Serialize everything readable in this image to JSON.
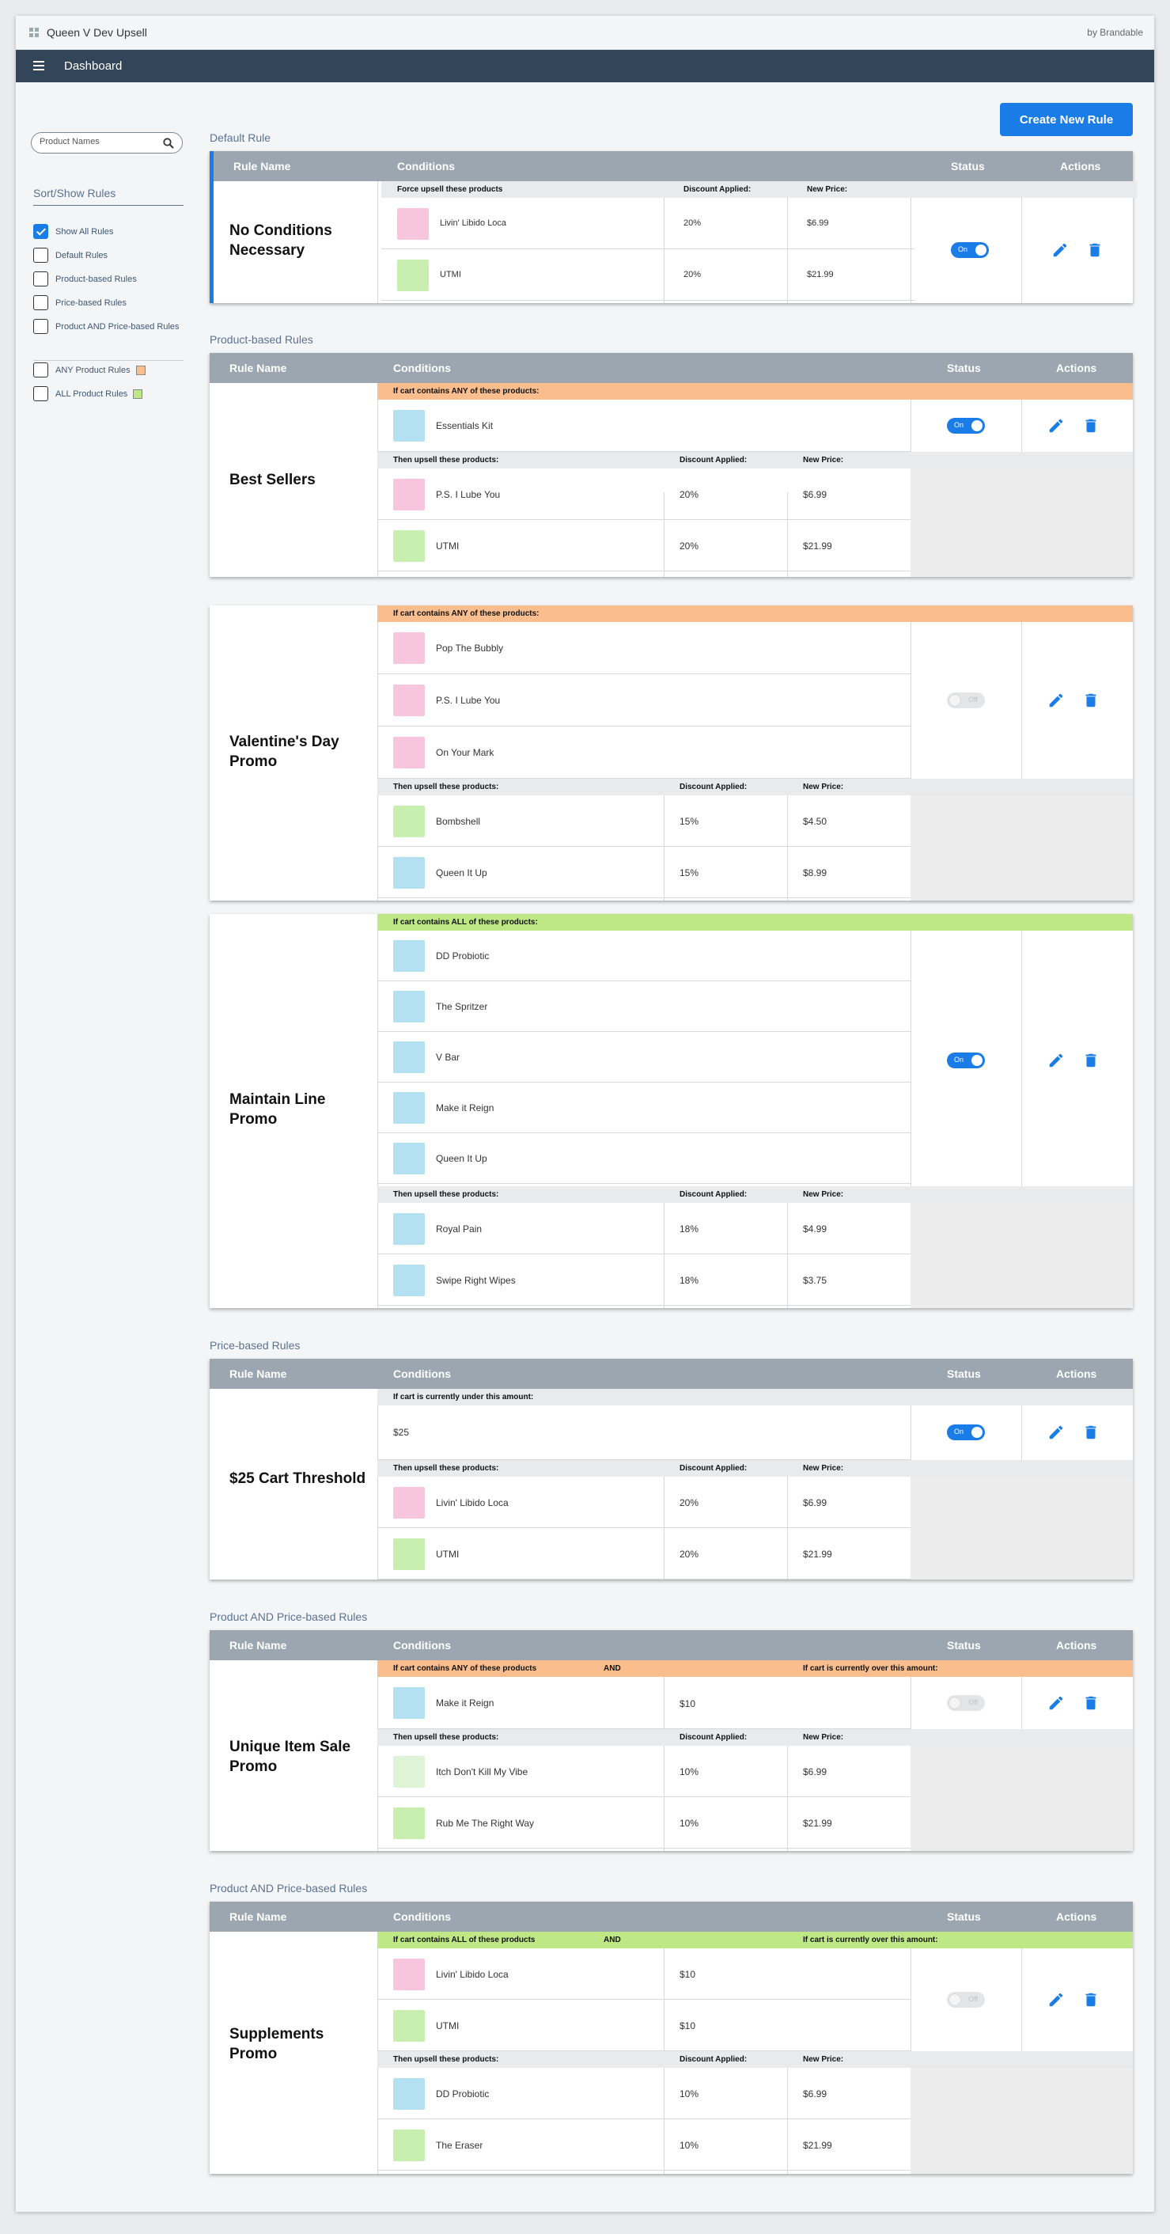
{
  "app": {
    "title": "Queen V Dev Upsell",
    "by": "by Brandable",
    "nav_title": "Dashboard"
  },
  "search": {
    "placeholder": "Product Names"
  },
  "sidebar": {
    "title": "Sort/Show Rules",
    "filters": [
      "Show All Rules",
      "Default Rules",
      "Product-based Rules",
      "Price-based Rules",
      "Product AND Price-based Rules"
    ],
    "swatches": [
      "ANY Product Rules",
      "ALL Product Rules"
    ]
  },
  "create_button": "Create New Rule",
  "colors": {
    "accent": "#1a7ce6",
    "any": "#f9bd8e",
    "all": "#bee886",
    "header": "#9ba6b1",
    "nav": "#334559"
  },
  "headers": {
    "rule_name": "Rule Name",
    "conditions": "Conditions",
    "status": "Status",
    "actions": "Actions"
  },
  "labels": {
    "discount": "Discount Applied:",
    "new_price": "New Price:",
    "then_upsell": "Then upsell these products:",
    "force_upsell": "Force upsell these products",
    "if_any": "If cart contains ANY of these products:",
    "if_all": "If cart contains ALL of these products:",
    "if_under": "If cart is currently under this amount:",
    "if_any_short": "If cart contains ANY of these products",
    "if_all_short": "If cart contains ALL of these products",
    "and": "AND",
    "if_over": "If cart is currently over this amount:",
    "on": "On",
    "off": "Off"
  },
  "sections": [
    "Default Rule",
    "Product-based Rules",
    "Price-based Rules",
    "Product AND Price-based Rules",
    "Product AND Price-based Rules"
  ],
  "rules": [
    {
      "name": "No Conditions Necessary",
      "status": "on",
      "upsell": [
        {
          "product": "Livin' Libido Loca",
          "discount": "20%",
          "price": "$6.99"
        },
        {
          "product": "UTMI",
          "discount": "20%",
          "price": "$21.99"
        }
      ]
    },
    {
      "name": "Best Sellers",
      "status": "on",
      "conditions": [
        "Essentials Kit"
      ],
      "upsell": [
        {
          "product": "P.S. I Lube You",
          "discount": "20%",
          "price": "$6.99"
        },
        {
          "product": "UTMI",
          "discount": "20%",
          "price": "$21.99"
        }
      ]
    },
    {
      "name": "Valentine's Day Promo",
      "status": "off",
      "conditions": [
        "Pop The Bubbly",
        "P.S. I Lube You",
        "On Your Mark"
      ],
      "upsell": [
        {
          "product": "Bombshell",
          "discount": "15%",
          "price": "$4.50"
        },
        {
          "product": "Queen It Up",
          "discount": "15%",
          "price": "$8.99"
        }
      ]
    },
    {
      "name": "Maintain Line Promo",
      "status": "on",
      "conditions": [
        "DD Probiotic",
        "The Spritzer",
        "V Bar",
        "Make it Reign",
        "Queen It Up"
      ],
      "upsell": [
        {
          "product": "Royal Pain",
          "discount": "18%",
          "price": "$4.99"
        },
        {
          "product": "Swipe Right Wipes",
          "discount": "18%",
          "price": "$3.75"
        }
      ]
    },
    {
      "name": "$25 Cart Threshold",
      "status": "on",
      "amount": "$25",
      "upsell": [
        {
          "product": "Livin' Libido Loca",
          "discount": "20%",
          "price": "$6.99"
        },
        {
          "product": "UTMI",
          "discount": "20%",
          "price": "$21.99"
        }
      ]
    },
    {
      "name": "Unique Item Sale Promo",
      "status": "off",
      "conditions": [
        {
          "product": "Make it Reign",
          "amount": "$10"
        }
      ],
      "upsell": [
        {
          "product": "Itch Don't Kill My Vibe",
          "discount": "10%",
          "price": "$6.99"
        },
        {
          "product": "Rub Me The Right Way",
          "discount": "10%",
          "price": "$21.99"
        }
      ]
    },
    {
      "name": "Supplements Promo",
      "status": "off",
      "conditions": [
        {
          "product": "Livin' Libido Loca",
          "amount": "$10"
        },
        {
          "product": "UTMI",
          "amount": "$10"
        }
      ],
      "upsell": [
        {
          "product": "DD Probiotic",
          "discount": "10%",
          "price": "$6.99"
        },
        {
          "product": "The Eraser",
          "discount": "10%",
          "price": "$21.99"
        }
      ]
    }
  ]
}
